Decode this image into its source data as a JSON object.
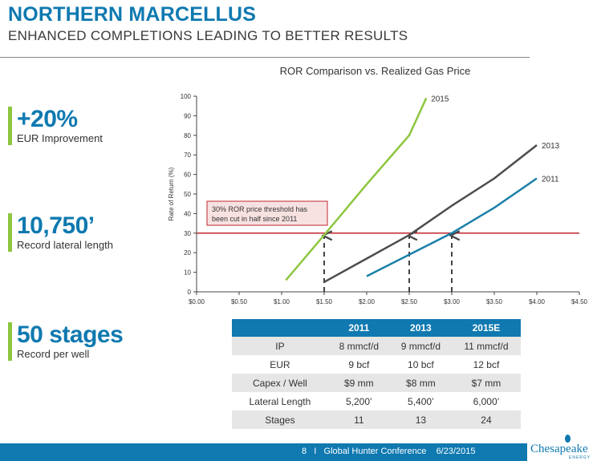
{
  "header": {
    "title": "NORTHERN MARCELLUS",
    "subtitle": "ENHANCED COMPLETIONS LEADING TO BETTER RESULTS"
  },
  "stats": [
    {
      "value": "+20%",
      "label": "EUR Improvement"
    },
    {
      "value": "10,750’",
      "label": "Record lateral length"
    },
    {
      "value": "50 stages",
      "label": "Record per well"
    }
  ],
  "chart_data": {
    "type": "line",
    "title": "ROR Comparison vs. Realized Gas Price",
    "xlabel": "",
    "ylabel": "Rate of Return (%)",
    "xlim": [
      0,
      4.5
    ],
    "ylim": [
      0,
      100
    ],
    "x_ticks": [
      "$0.00",
      "$0.50",
      "$1.00",
      "$1.50",
      "$2.00",
      "$2.50",
      "$3.00",
      "$3.50",
      "$4.00",
      "$4.50"
    ],
    "y_ticks": [
      "0",
      "10",
      "20",
      "30",
      "40",
      "50",
      "60",
      "70",
      "80",
      "90",
      "100"
    ],
    "grid": false,
    "colors": {
      "2015": "#8dc63f",
      "2013": "#4d4d4d",
      "2011": "#1a7fa8",
      "threshold": "#c0272d"
    },
    "series": [
      {
        "name": "2015",
        "color": "#8dc63f",
        "points": [
          [
            1.05,
            6
          ],
          [
            1.5,
            29
          ],
          [
            2.0,
            55
          ],
          [
            2.5,
            80
          ],
          [
            2.7,
            99
          ]
        ]
      },
      {
        "name": "2013",
        "color": "#4d4d4d",
        "points": [
          [
            1.5,
            5
          ],
          [
            2.0,
            17
          ],
          [
            2.5,
            29
          ],
          [
            3.0,
            44
          ],
          [
            3.5,
            58
          ],
          [
            4.0,
            75
          ]
        ]
      },
      {
        "name": "2011",
        "color": "#1a7fa8",
        "points": [
          [
            2.0,
            8
          ],
          [
            2.5,
            19
          ],
          [
            3.0,
            30
          ],
          [
            3.5,
            43
          ],
          [
            4.0,
            58
          ]
        ]
      }
    ],
    "threshold": {
      "y": 30,
      "label_line1": "30% ROR price threshold has",
      "label_line2": "been cut in half since 2011"
    },
    "markers": [
      1.5,
      2.5,
      3.0
    ]
  },
  "table": {
    "headers": [
      "",
      "2011",
      "2013",
      "2015E"
    ],
    "rows": [
      [
        "IP",
        "8 mmcf/d",
        "9 mmcf/d",
        "11 mmcf/d"
      ],
      [
        "EUR",
        "9 bcf",
        "10 bcf",
        "12 bcf"
      ],
      [
        "Capex / Well",
        "$9 mm",
        "$8 mm",
        "$7 mm"
      ],
      [
        "Lateral Length",
        "5,200’",
        "5,400’",
        "6,000’"
      ],
      [
        "Stages",
        "11",
        "13",
        "24"
      ]
    ]
  },
  "footer": {
    "page": "8",
    "separator": "I",
    "event": "Global Hunter Conference",
    "date": "6/23/2015",
    "logo_name": "Chesapeake",
    "logo_sub": "ENERGY"
  }
}
